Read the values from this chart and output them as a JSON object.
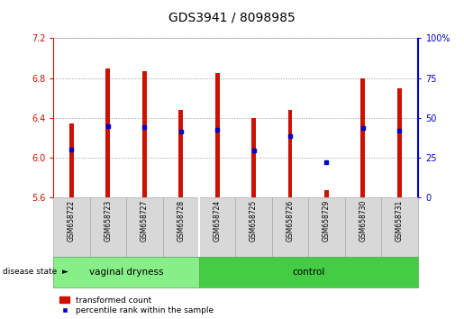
{
  "title": "GDS3941 / 8098985",
  "samples": [
    "GSM658722",
    "GSM658723",
    "GSM658727",
    "GSM658728",
    "GSM658724",
    "GSM658725",
    "GSM658726",
    "GSM658729",
    "GSM658730",
    "GSM658731"
  ],
  "bar_tops": [
    6.35,
    6.9,
    6.87,
    6.48,
    6.85,
    6.4,
    6.48,
    5.68,
    6.8,
    6.7
  ],
  "bar_bottom": 5.6,
  "blue_y": [
    6.08,
    6.32,
    6.31,
    6.26,
    6.28,
    6.07,
    6.22,
    5.96,
    6.3,
    6.27
  ],
  "ylim_left": [
    5.6,
    7.2
  ],
  "ylim_right": [
    0,
    100
  ],
  "yticks_left": [
    5.6,
    6.0,
    6.4,
    6.8,
    7.2
  ],
  "yticks_right": [
    0,
    25,
    50,
    75,
    100
  ],
  "bar_color": "#cc1100",
  "blue_color": "#0000cc",
  "group1_label": "vaginal dryness",
  "group2_label": "control",
  "group1_count": 4,
  "group2_count": 6,
  "group1_color": "#88ee88",
  "group2_color": "#44cc44",
  "legend_red": "transformed count",
  "legend_blue": "percentile rank within the sample",
  "disease_label": "disease state",
  "left_axis_color": "#cc1100",
  "right_axis_color": "#0000cc",
  "bar_width": 0.12
}
